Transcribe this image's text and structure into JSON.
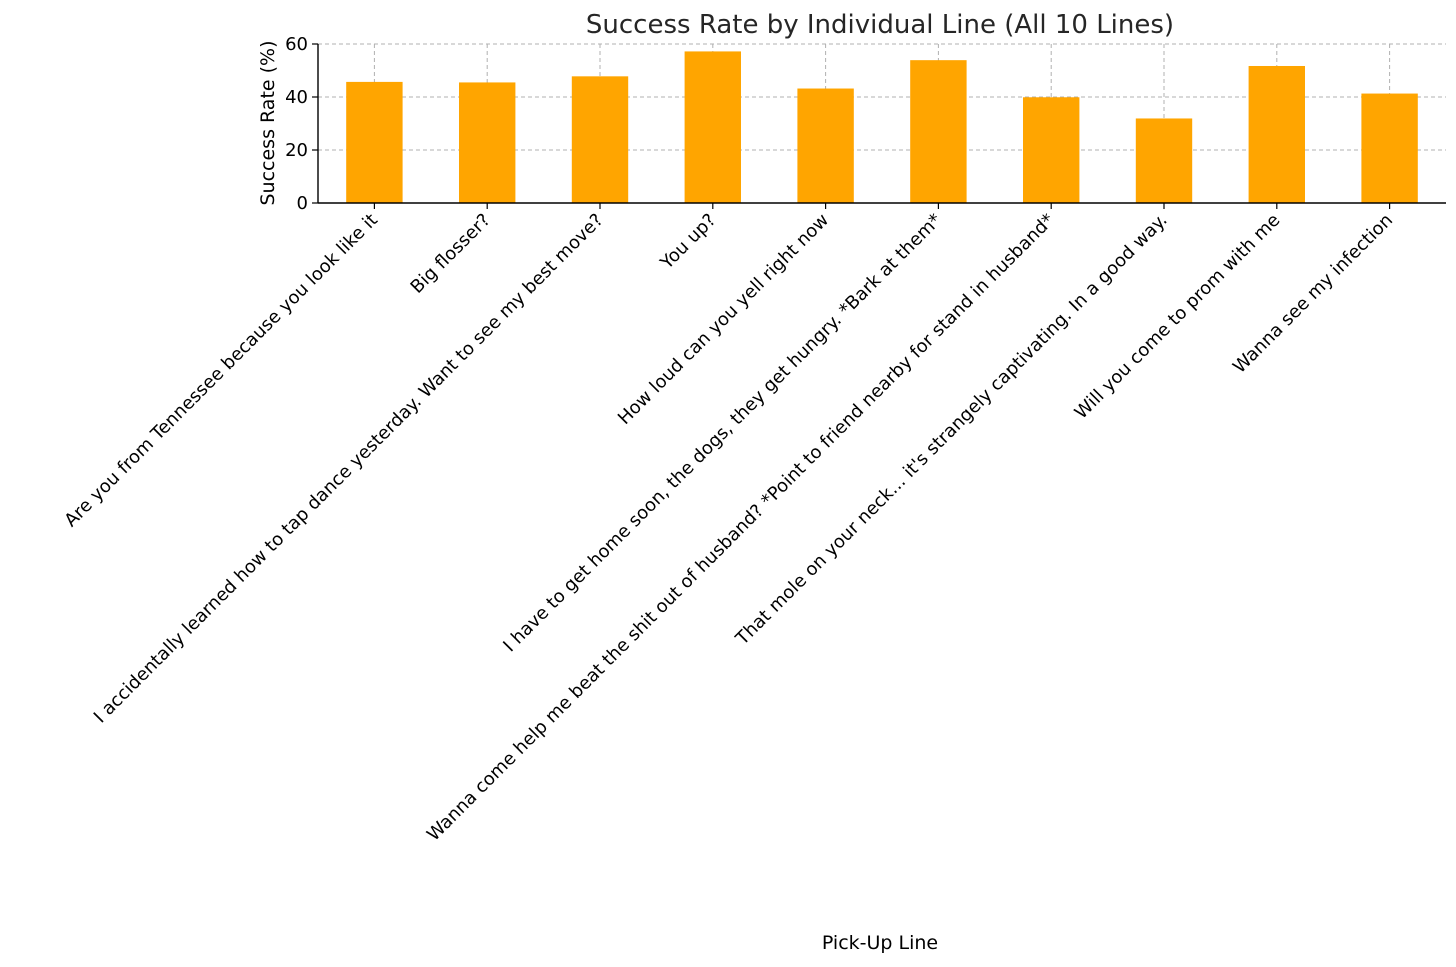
{
  "chart_data": {
    "type": "bar",
    "title": "Success Rate by Individual Line (All 10 Lines)",
    "xlabel": "Pick-Up Line",
    "ylabel": "Success Rate (%)",
    "ylim": [
      0,
      60
    ],
    "yticks": [
      0,
      20,
      40,
      60
    ],
    "grid": true,
    "bar_color": "#FFA500",
    "categories": [
      "Are you from Tennessee because you look like it",
      "Big flosser?",
      "I accidentally learned how to tap dance yesterday. Want to see my best move?",
      "You up?",
      "How loud can you yell right now",
      "I have to get home soon, the dogs, they get hungry. *Bark at them*",
      "Wanna come help me beat the shit out of husband? *Point to friend nearby for stand in husband*",
      "That mole on your neck... it's strangely captivating. In a good way.",
      "Will you come to prom with me",
      "Wanna see my infection"
    ],
    "values": [
      45.7,
      45.5,
      47.8,
      57.2,
      43.2,
      53.9,
      39.9,
      31.9,
      51.7,
      41.3
    ]
  }
}
